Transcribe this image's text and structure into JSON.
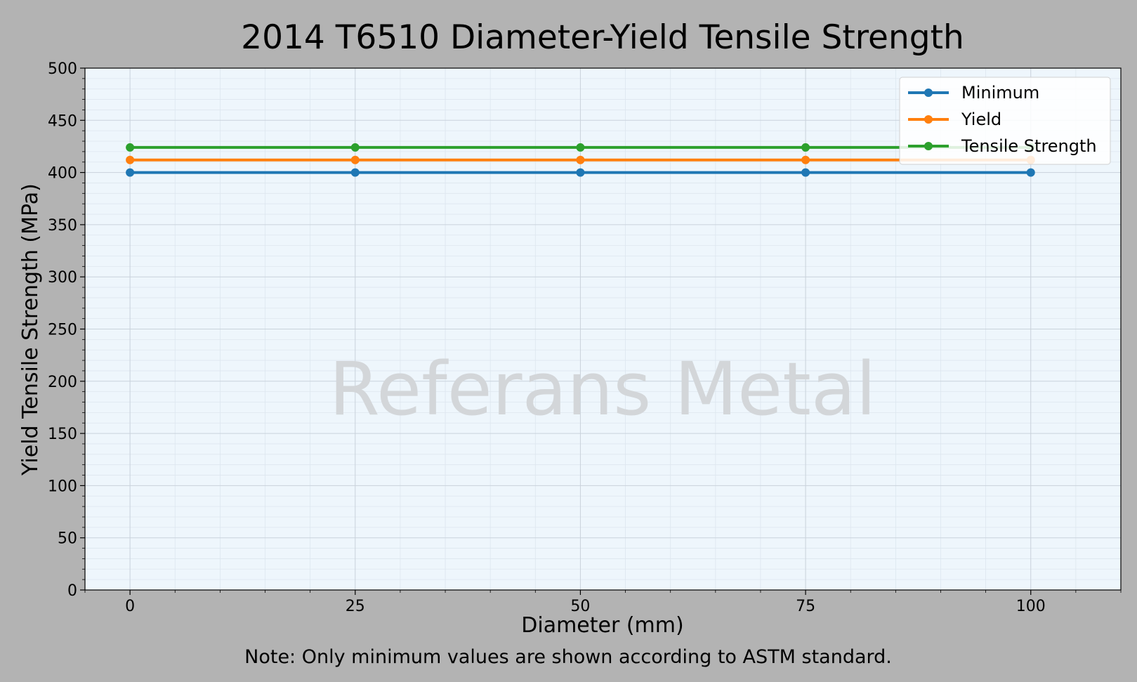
{
  "chart_data": {
    "type": "line",
    "title": "2014 T6510 Diameter-Yield Tensile Strength",
    "xlabel": "Diameter (mm)",
    "ylabel": "Yield Tensile Strength (MPa)",
    "note": "Note: Only minimum values are shown according to ASTM standard.",
    "watermark": "Referans Metal",
    "x": [
      0,
      25,
      50,
      75,
      100
    ],
    "xlim": [
      -5,
      110
    ],
    "ylim": [
      0,
      500
    ],
    "xticks": [
      0,
      25,
      50,
      75,
      100
    ],
    "yticks": [
      0,
      50,
      100,
      150,
      200,
      250,
      300,
      350,
      400,
      450,
      500
    ],
    "grid": true,
    "legend_position": "top-right",
    "series": [
      {
        "name": "Minimum",
        "values": [
          400,
          400,
          400,
          400,
          400
        ],
        "color": "#1f77b4"
      },
      {
        "name": "Yield",
        "values": [
          412,
          412,
          412,
          412,
          412
        ],
        "color": "#ff7f0e"
      },
      {
        "name": "Tensile Strength",
        "values": [
          424,
          424,
          424,
          424,
          424
        ],
        "color": "#2ca02c"
      }
    ],
    "colors": {
      "figure_background": "#b3b3b3",
      "plot_background": "#eef6fc",
      "watermark": "#d3d6d9"
    }
  }
}
